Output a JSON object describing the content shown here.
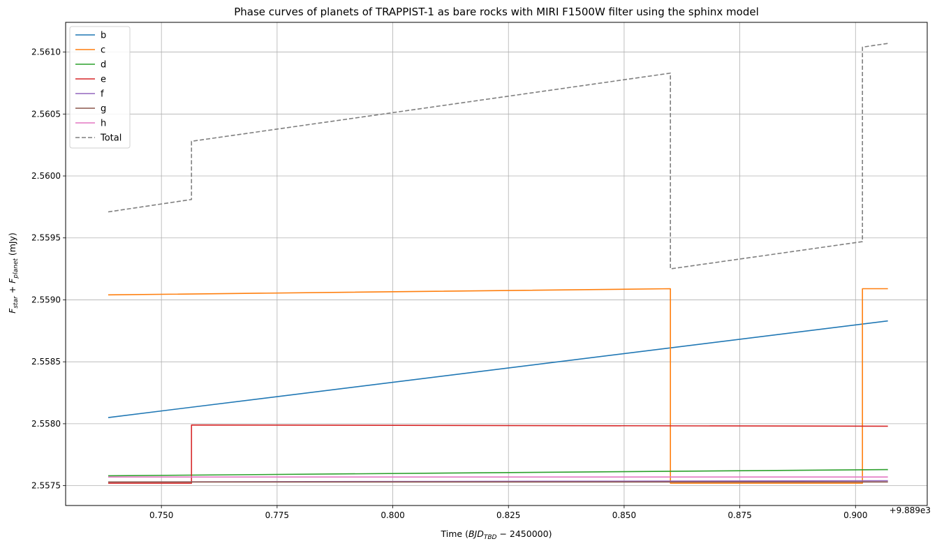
{
  "chart_data": {
    "type": "line",
    "title": "Phase curves of planets of TRAPPIST-1 as bare rocks with MIRI F1500W filter using the sphinx model",
    "xlabel_prefix": "Time (",
    "xlabel_math_base": "BJD",
    "xlabel_math_sub": "TBD",
    "xlabel_math_rest": " − 2450000)",
    "ylabel_F1": "F",
    "ylabel_sub1": "star",
    "ylabel_plus": " + ",
    "ylabel_F2": "F",
    "ylabel_sub2": "planet",
    "ylabel_unit": " (mJy)",
    "x_offset_label": "+9.889e3",
    "xlim": [
      0.7293,
      0.9155
    ],
    "ylim": [
      2.55734,
      2.56124
    ],
    "x_ticks": [
      0.75,
      0.775,
      0.8,
      0.825,
      0.85,
      0.875,
      0.9
    ],
    "x_tick_labels": [
      "0.750",
      "0.775",
      "0.800",
      "0.825",
      "0.850",
      "0.875",
      "0.900"
    ],
    "y_ticks": [
      2.5575,
      2.558,
      2.5585,
      2.559,
      2.5595,
      2.56,
      2.5605,
      2.561
    ],
    "y_tick_labels": [
      "2.5575",
      "2.5580",
      "2.5585",
      "2.5590",
      "2.5595",
      "2.5600",
      "2.5605",
      "2.5610"
    ],
    "grid": true,
    "legend_position": "top-left",
    "series": [
      {
        "name": "b",
        "color": "#1f77b4",
        "dash": false,
        "points": [
          [
            0.7385,
            2.55805
          ],
          [
            0.907,
            2.55883
          ]
        ]
      },
      {
        "name": "c",
        "color": "#ff7f0e",
        "dash": false,
        "points": [
          [
            0.7385,
            2.55904
          ],
          [
            0.86,
            2.55909
          ],
          [
            0.86,
            2.55752
          ],
          [
            0.9015,
            2.55752
          ],
          [
            0.9015,
            2.55909
          ],
          [
            0.907,
            2.55909
          ]
        ]
      },
      {
        "name": "d",
        "color": "#2ca02c",
        "dash": false,
        "points": [
          [
            0.7385,
            2.55758
          ],
          [
            0.907,
            2.55763
          ]
        ]
      },
      {
        "name": "e",
        "color": "#d62728",
        "dash": false,
        "points": [
          [
            0.7385,
            2.55752
          ],
          [
            0.7565,
            2.55752
          ],
          [
            0.7565,
            2.55799
          ],
          [
            0.907,
            2.55798
          ]
        ]
      },
      {
        "name": "f",
        "color": "#9467bd",
        "dash": false,
        "points": [
          [
            0.7385,
            2.55753
          ],
          [
            0.907,
            2.55754
          ]
        ]
      },
      {
        "name": "g",
        "color": "#8c564b",
        "dash": false,
        "points": [
          [
            0.7385,
            2.55753
          ],
          [
            0.907,
            2.55753
          ]
        ]
      },
      {
        "name": "h",
        "color": "#e377c2",
        "dash": false,
        "points": [
          [
            0.7385,
            2.55757
          ],
          [
            0.907,
            2.55757
          ]
        ]
      },
      {
        "name": "Total",
        "color": "#7f7f7f",
        "dash": true,
        "points": [
          [
            0.7385,
            2.55971
          ],
          [
            0.7565,
            2.55981
          ],
          [
            0.7565,
            2.56028
          ],
          [
            0.86,
            2.56083
          ],
          [
            0.86,
            2.55925
          ],
          [
            0.9015,
            2.55947
          ],
          [
            0.9015,
            2.56104
          ],
          [
            0.907,
            2.56107
          ]
        ]
      }
    ]
  }
}
